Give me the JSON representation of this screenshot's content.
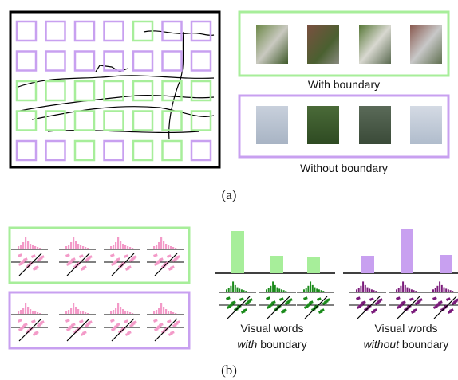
{
  "panel_a": {
    "label": "(a)",
    "with_caption": "With boundary",
    "without_caption": "Without boundary"
  },
  "panel_b": {
    "label": "(b)",
    "with_words": {
      "line1": "Visual words",
      "emph": "with",
      "rest": "boundary"
    },
    "without_words": {
      "line1": "Visual words",
      "emph": "without",
      "rest": "boundary"
    }
  }
}
